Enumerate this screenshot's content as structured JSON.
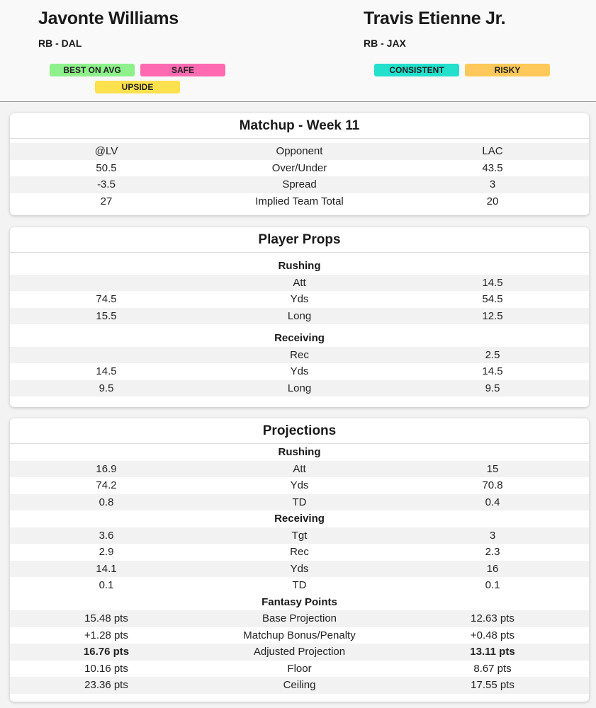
{
  "players": {
    "left": {
      "name": "Javonte Williams",
      "position": "RB - DAL",
      "badges": [
        {
          "label": "BEST ON AVG",
          "color": "#8ef08a"
        },
        {
          "label": "SAFE",
          "color": "#ff6ab0"
        },
        {
          "label": "UPSIDE",
          "color": "#ffe04d"
        }
      ]
    },
    "right": {
      "name": "Travis Etienne Jr.",
      "position": "RB - JAX",
      "badges": [
        {
          "label": "CONSISTENT",
          "color": "#22e0cc"
        },
        {
          "label": "RISKY",
          "color": "#ffc85a"
        }
      ]
    }
  },
  "matchup": {
    "title": "Matchup - Week 11",
    "rows": [
      {
        "left": "@LV",
        "label": "Opponent",
        "right": "LAC"
      },
      {
        "left": "50.5",
        "label": "Over/Under",
        "right": "43.5"
      },
      {
        "left": "-3.5",
        "label": "Spread",
        "right": "3"
      },
      {
        "left": "27",
        "label": "Implied Team Total",
        "right": "20"
      }
    ]
  },
  "props": {
    "title": "Player Props",
    "sections": [
      {
        "heading": "Rushing",
        "rows": [
          {
            "left": "",
            "label": "Att",
            "right": "14.5"
          },
          {
            "left": "74.5",
            "label": "Yds",
            "right": "54.5"
          },
          {
            "left": "15.5",
            "label": "Long",
            "right": "12.5"
          }
        ]
      },
      {
        "heading": "Receiving",
        "rows": [
          {
            "left": "",
            "label": "Rec",
            "right": "2.5"
          },
          {
            "left": "14.5",
            "label": "Yds",
            "right": "14.5"
          },
          {
            "left": "9.5",
            "label": "Long",
            "right": "9.5"
          }
        ]
      }
    ]
  },
  "projections": {
    "title": "Projections",
    "sections": [
      {
        "heading": "Rushing",
        "rows": [
          {
            "left": "16.9",
            "label": "Att",
            "right": "15"
          },
          {
            "left": "74.2",
            "label": "Yds",
            "right": "70.8"
          },
          {
            "left": "0.8",
            "label": "TD",
            "right": "0.4"
          }
        ]
      },
      {
        "heading": "Receiving",
        "rows": [
          {
            "left": "3.6",
            "label": "Tgt",
            "right": "3"
          },
          {
            "left": "2.9",
            "label": "Rec",
            "right": "2.3"
          },
          {
            "left": "14.1",
            "label": "Yds",
            "right": "16"
          },
          {
            "left": "0.1",
            "label": "TD",
            "right": "0.1"
          }
        ]
      },
      {
        "heading": "Fantasy Points",
        "rows": [
          {
            "left": "15.48 pts",
            "label": "Base Projection",
            "right": "12.63 pts"
          },
          {
            "left": "+1.28 pts",
            "label": "Matchup Bonus/Penalty",
            "right": "+0.48 pts"
          },
          {
            "left": "16.76 pts",
            "label": "Adjusted Projection",
            "right": "13.11 pts",
            "bold": true
          },
          {
            "left": "10.16 pts",
            "label": "Floor",
            "right": "8.67 pts"
          },
          {
            "left": "23.36 pts",
            "label": "Ceiling",
            "right": "17.55 pts"
          }
        ]
      }
    ]
  }
}
